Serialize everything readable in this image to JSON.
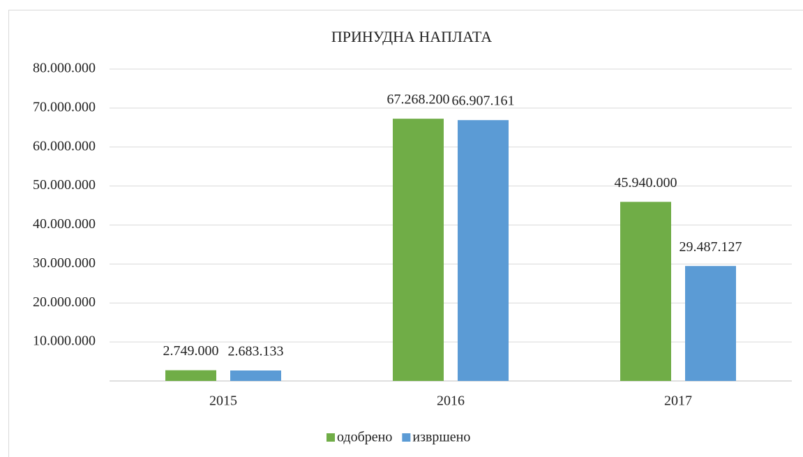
{
  "chart_data": {
    "type": "bar",
    "title": "ПРИНУДНА НАПЛАТА",
    "categories": [
      "2015",
      "2016",
      "2017"
    ],
    "series": [
      {
        "name": "одобрено",
        "color": "#70ad47",
        "values": [
          2749000,
          67268200,
          45940000
        ],
        "value_labels": [
          "2.749.000",
          "67.268.200",
          "45.940.000"
        ]
      },
      {
        "name": "извршено",
        "color": "#5b9bd5",
        "values": [
          2683133,
          66907161,
          29487127
        ],
        "value_labels": [
          "2.683.133",
          "66.907.161",
          "29.487.127"
        ]
      }
    ],
    "ylim": [
      0,
      80000000
    ],
    "yticks": [
      {
        "value": 10000000,
        "label": "10.000.000"
      },
      {
        "value": 20000000,
        "label": "20.000.000"
      },
      {
        "value": 30000000,
        "label": "30.000.000"
      },
      {
        "value": 40000000,
        "label": "40.000.000"
      },
      {
        "value": 50000000,
        "label": "50.000.000"
      },
      {
        "value": 60000000,
        "label": "60.000.000"
      },
      {
        "value": 70000000,
        "label": "70.000.000"
      },
      {
        "value": 80000000,
        "label": "80.000.000"
      }
    ],
    "grid": true,
    "legend": "bottom"
  }
}
